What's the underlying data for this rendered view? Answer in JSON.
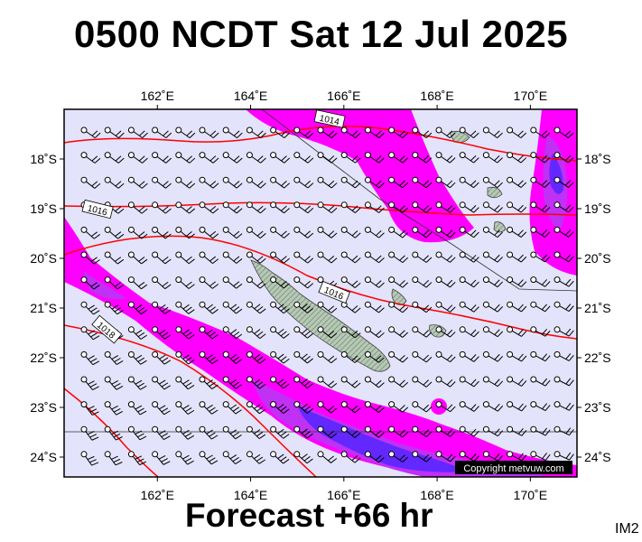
{
  "title": "0500 NCDT Sat 12 Jul 2025",
  "subtitle": "Forecast +66 hr",
  "panel_id": "IM2",
  "copyright": "Copyright metvuw.com",
  "map": {
    "lon_range": [
      160.0,
      171.0
    ],
    "lat_range": [
      -17.0,
      -24.4
    ],
    "lon_ticks": [
      {
        "value": 162,
        "label": "162˚E"
      },
      {
        "value": 164,
        "label": "164˚E"
      },
      {
        "value": 166,
        "label": "166˚E"
      },
      {
        "value": 168,
        "label": "168˚E"
      },
      {
        "value": 170,
        "label": "170˚E"
      }
    ],
    "lat_ticks": [
      {
        "value": -18,
        "label": "18˚S"
      },
      {
        "value": -19,
        "label": "19˚S"
      },
      {
        "value": -20,
        "label": "20˚S"
      },
      {
        "value": -21,
        "label": "21˚S"
      },
      {
        "value": -22,
        "label": "22˚S"
      },
      {
        "value": -23,
        "label": "23˚S"
      },
      {
        "value": -24,
        "label": "24˚S"
      }
    ],
    "isobar_labels": [
      "1014",
      "1016",
      "1016",
      "1018"
    ],
    "colors": {
      "background": "#e3e3fb",
      "rain_light": "#ff00ff",
      "rain_medium": "#c020f0",
      "rain_heavy": "#5a28ff",
      "isobar": "#ff0000",
      "land": "#b8c8b4",
      "wind_barb": "#000000"
    }
  }
}
